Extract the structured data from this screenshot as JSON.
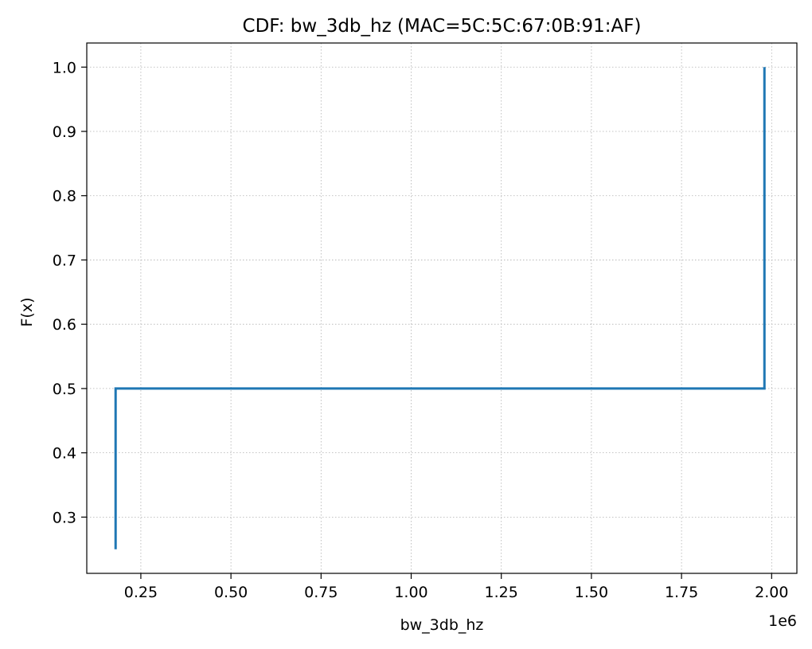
{
  "chart_data": {
    "type": "line",
    "title": "CDF: bw_3db_hz (MAC=5C:5C:67:0B:91:AF)",
    "xlabel": "bw_3db_hz",
    "ylabel": "F(x)",
    "x_offset_text": "1e6",
    "x_scale_factor": 1000000,
    "xlim": [
      0.1,
      2.07
    ],
    "ylim": [
      0.2125,
      1.0375
    ],
    "x_ticks": [
      0.25,
      0.5,
      0.75,
      1.0,
      1.25,
      1.5,
      1.75,
      2.0
    ],
    "x_tick_labels": [
      "0.25",
      "0.50",
      "0.75",
      "1.00",
      "1.25",
      "1.50",
      "1.75",
      "2.00"
    ],
    "y_ticks": [
      0.3,
      0.4,
      0.5,
      0.6,
      0.7,
      0.8,
      0.9,
      1.0
    ],
    "y_tick_labels": [
      "0.3",
      "0.4",
      "0.5",
      "0.6",
      "0.7",
      "0.8",
      "0.9",
      "1.0"
    ],
    "grid": true,
    "color": "#1f77b4",
    "series": [
      {
        "x": [
          0.18,
          0.18,
          1.98,
          1.98
        ],
        "y": [
          0.25,
          0.5,
          0.5,
          1.0
        ]
      }
    ]
  }
}
